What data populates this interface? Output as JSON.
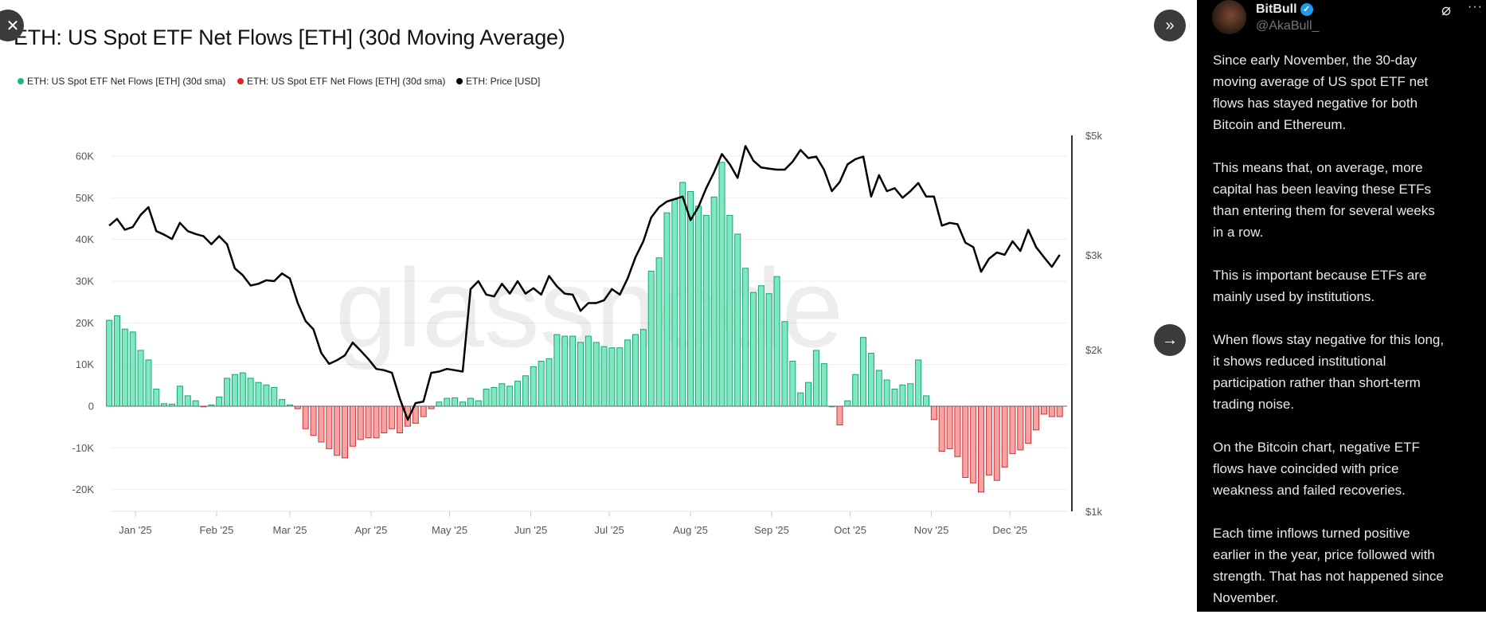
{
  "chart_data": {
    "type": "bar",
    "title": "ETH: US Spot ETF Net Flows [ETH] (30d Moving Average)",
    "legend": [
      {
        "label": "ETH: US Spot ETF Net Flows [ETH] (30d sma)",
        "color": "#1db584"
      },
      {
        "label": "ETH: US Spot ETF Net Flows [ETH] (30d sma)",
        "color": "#e0262b"
      },
      {
        "label": "ETH: Price [USD]",
        "color": "#000000"
      }
    ],
    "legend_position": "top-left",
    "watermark": "glassnode",
    "left_axis": {
      "ticks": [
        60000,
        50000,
        40000,
        30000,
        20000,
        10000,
        0,
        -10000,
        -20000
      ],
      "labels": [
        "60K",
        "50K",
        "40K",
        "30K",
        "20K",
        "10K",
        "0",
        "-10K",
        "-20K"
      ],
      "ylim": [
        -25000,
        60000
      ]
    },
    "right_axis": {
      "scale": "log",
      "ticks": [
        5000,
        3000,
        2000,
        1000
      ],
      "labels": [
        "$5k",
        "$3k",
        "$2k",
        "$1k"
      ],
      "ylim": [
        1000,
        5000
      ]
    },
    "x_axis": {
      "ticks": [
        "2025-01-01",
        "2025-02-01",
        "2025-03-01",
        "2025-04-01",
        "2025-05-01",
        "2025-06-01",
        "2025-07-01",
        "2025-08-01",
        "2025-09-01",
        "2025-10-01",
        "2025-11-01",
        "2025-12-01"
      ],
      "labels": [
        "Jan '25",
        "Feb '25",
        "Mar '25",
        "Apr '25",
        "May '25",
        "Jun '25",
        "Jul '25",
        "Aug '25",
        "Sep '25",
        "Oct '25",
        "Nov '25",
        "Dec '25"
      ]
    },
    "grid": true,
    "colors": {
      "positive_fill": "#7ee8c0",
      "positive_stroke": "#13a874",
      "negative_fill": "#f6a3a3",
      "negative_stroke": "#d62f35",
      "price": "#000000"
    },
    "x": [
      "2024-12-22",
      "2024-12-25",
      "2024-12-28",
      "2024-12-31",
      "2025-01-03",
      "2025-01-06",
      "2025-01-09",
      "2025-01-12",
      "2025-01-15",
      "2025-01-18",
      "2025-01-21",
      "2025-01-24",
      "2025-01-27",
      "2025-01-30",
      "2025-02-02",
      "2025-02-05",
      "2025-02-08",
      "2025-02-11",
      "2025-02-14",
      "2025-02-17",
      "2025-02-20",
      "2025-02-23",
      "2025-02-26",
      "2025-03-01",
      "2025-03-04",
      "2025-03-07",
      "2025-03-10",
      "2025-03-13",
      "2025-03-16",
      "2025-03-19",
      "2025-03-22",
      "2025-03-25",
      "2025-03-28",
      "2025-03-31",
      "2025-04-03",
      "2025-04-06",
      "2025-04-09",
      "2025-04-12",
      "2025-04-15",
      "2025-04-18",
      "2025-04-21",
      "2025-04-24",
      "2025-04-27",
      "2025-04-30",
      "2025-05-03",
      "2025-05-06",
      "2025-05-09",
      "2025-05-12",
      "2025-05-15",
      "2025-05-18",
      "2025-05-21",
      "2025-05-24",
      "2025-05-27",
      "2025-05-30",
      "2025-06-02",
      "2025-06-05",
      "2025-06-08",
      "2025-06-11",
      "2025-06-14",
      "2025-06-17",
      "2025-06-20",
      "2025-06-23",
      "2025-06-26",
      "2025-06-29",
      "2025-07-02",
      "2025-07-05",
      "2025-07-08",
      "2025-07-11",
      "2025-07-14",
      "2025-07-17",
      "2025-07-20",
      "2025-07-23",
      "2025-07-26",
      "2025-07-29",
      "2025-08-01",
      "2025-08-04",
      "2025-08-07",
      "2025-08-10",
      "2025-08-13",
      "2025-08-16",
      "2025-08-19",
      "2025-08-22",
      "2025-08-25",
      "2025-08-28",
      "2025-08-31",
      "2025-09-03",
      "2025-09-06",
      "2025-09-09",
      "2025-09-12",
      "2025-09-15",
      "2025-09-18",
      "2025-09-21",
      "2025-09-24",
      "2025-09-27",
      "2025-09-30",
      "2025-10-03",
      "2025-10-06",
      "2025-10-09",
      "2025-10-12",
      "2025-10-15",
      "2025-10-18",
      "2025-10-21",
      "2025-10-24",
      "2025-10-27",
      "2025-10-30",
      "2025-11-02",
      "2025-11-05",
      "2025-11-08",
      "2025-11-11",
      "2025-11-14",
      "2025-11-17",
      "2025-11-20",
      "2025-11-23",
      "2025-11-26",
      "2025-11-29",
      "2025-12-02",
      "2025-12-05",
      "2025-12-08",
      "2025-12-11",
      "2025-12-14",
      "2025-12-17",
      "2025-12-20"
    ],
    "series": [
      {
        "name": "ETH: US Spot ETF Net Flows [ETH] (30d sma)",
        "axis": "left",
        "type": "bar",
        "values": [
          20600,
          21700,
          18500,
          17800,
          13400,
          11100,
          4100,
          600,
          500,
          4800,
          2500,
          1300,
          -100,
          300,
          2200,
          6700,
          7600,
          8000,
          6700,
          5700,
          5100,
          4500,
          1600,
          300,
          -600,
          -5400,
          -7000,
          -8600,
          -10200,
          -11800,
          -12400,
          -9600,
          -8000,
          -7600,
          -7600,
          -6400,
          -5400,
          -6400,
          -4800,
          -4100,
          -2500,
          -600,
          1000,
          1900,
          2000,
          1000,
          1900,
          1300,
          4100,
          4500,
          5400,
          4800,
          6000,
          7300,
          9500,
          10800,
          11400,
          17200,
          16800,
          16800,
          15300,
          16800,
          15300,
          14300,
          14000,
          14000,
          15900,
          17200,
          18400,
          32400,
          35600,
          46400,
          49600,
          53700,
          51500,
          48000,
          45800,
          50200,
          58500,
          45800,
          41300,
          33100,
          27300,
          28900,
          27000,
          31100,
          20300,
          10800,
          3200,
          5700,
          13400,
          10200,
          0,
          -4500,
          1300,
          7600,
          16500,
          12700,
          8600,
          6300,
          4100,
          5100,
          5400,
          11100,
          2500,
          -3200,
          -10800,
          -10200,
          -12100,
          -17100,
          -18400,
          -20600,
          -16500,
          -17800,
          -14600,
          -11400,
          -10500,
          -8900,
          -5700,
          -1900,
          -2500,
          -2500
        ]
      },
      {
        "name": "ETH: Price [USD]",
        "axis": "right",
        "type": "line",
        "values": [
          3400,
          3500,
          3340,
          3380,
          3560,
          3680,
          3320,
          3270,
          3210,
          3440,
          3320,
          3280,
          3250,
          3140,
          3250,
          3140,
          2830,
          2750,
          2630,
          2650,
          2690,
          2680,
          2770,
          2710,
          2440,
          2260,
          2180,
          1970,
          1880,
          1910,
          1950,
          2060,
          1990,
          1920,
          1840,
          1830,
          1810,
          1620,
          1480,
          1590,
          1600,
          1810,
          1820,
          1840,
          1830,
          1820,
          2590,
          2680,
          2530,
          2510,
          2650,
          2540,
          2680,
          2540,
          2600,
          2530,
          2740,
          2620,
          2540,
          2530,
          2360,
          2440,
          2440,
          2470,
          2590,
          2530,
          2710,
          2970,
          3180,
          3520,
          3680,
          3770,
          3810,
          3850,
          3480,
          3680,
          3990,
          4270,
          4620,
          4420,
          4170,
          4780,
          4490,
          4360,
          4340,
          4320,
          4320,
          4470,
          4700,
          4540,
          4570,
          4320,
          3940,
          4100,
          4420,
          4520,
          4570,
          3850,
          4220,
          3940,
          3990,
          3830,
          3940,
          4080,
          3850,
          3850,
          3400,
          3440,
          3420,
          3160,
          3100,
          2790,
          2950,
          3030,
          3000,
          3180,
          3050,
          3340,
          3100,
          2970,
          2850,
          3000
        ]
      }
    ]
  },
  "overlay": {
    "close_icon": "close-icon",
    "expand_icon": "chevrons-right-icon",
    "next_icon": "arrow-right-icon"
  },
  "tweet": {
    "name": "BitBull",
    "handle": "@AkaBull_",
    "verified_color": "#1d9bf0",
    "paragraphs": [
      [
        "Since early November, the 30-day",
        "moving average of US spot ETF net",
        "flows has stayed negative for both",
        "Bitcoin and Ethereum."
      ],
      [
        "This means that, on average, more",
        "capital has been leaving these ETFs",
        "than entering them for several weeks",
        "in a row."
      ],
      [
        "This is important because ETFs are",
        "mainly used by institutions."
      ],
      [
        "When flows stay negative for this long,",
        "it shows reduced institutional",
        "participation rather than short-term",
        "trading noise."
      ],
      [
        "On the Bitcoin chart, negative ETF",
        "flows have coincided with price",
        "weakness and failed recoveries."
      ],
      [
        "Each time inflows turned positive",
        "earlier in the year, price followed with",
        "strength. That has not happened since",
        "November."
      ]
    ]
  }
}
